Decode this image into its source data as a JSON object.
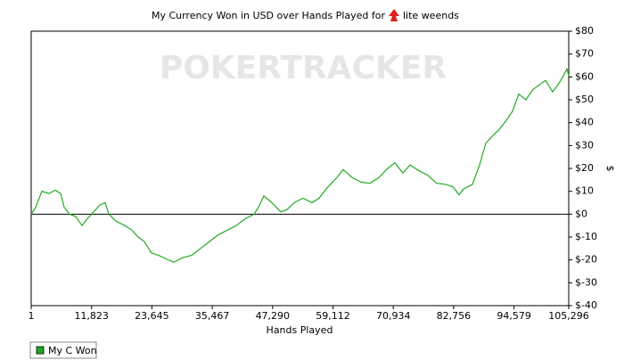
{
  "chart_data": {
    "type": "line",
    "title": "My Currency Won in USD over Hands Played for",
    "title_suffix": "lite weends",
    "watermark": "POKERTRACKER",
    "x_label": "Hands Played",
    "y_label": "$",
    "x": [
      1,
      874,
      2096,
      3493,
      4715,
      5763,
      6461,
      7509,
      8731,
      9953,
      11001,
      12223,
      13445,
      14493,
      15191,
      16588,
      18334,
      19731,
      20953,
      22175,
      23572,
      24969,
      26366,
      27937,
      29683,
      31429,
      33175,
      34921,
      36667,
      38413,
      40159,
      41905,
      43651,
      44524,
      45572,
      47143,
      48889,
      50111,
      51508,
      53254,
      55000,
      56397,
      58143,
      59889,
      61111,
      62857,
      64603,
      66349,
      68095,
      69841,
      71238,
      72809,
      74206,
      75952,
      77698,
      79444,
      81190,
      82587,
      83809,
      84682,
      86428,
      87825,
      89047,
      90269,
      91666,
      93063,
      94285,
      95507,
      96904,
      98301,
      99523,
      100745,
      102142,
      103190,
      104237,
      104936,
      105296
    ],
    "series": [
      {
        "name": "My C Won",
        "color": "#22aa22",
        "values": [
          0,
          3,
          10,
          9,
          10.5,
          9,
          3,
          0,
          -1,
          -5,
          -2,
          1,
          4,
          5,
          0,
          -3,
          -5,
          -7,
          -10,
          -12,
          -17,
          -18,
          -19.5,
          -21,
          -19,
          -18,
          -15,
          -12,
          -9,
          -7,
          -5,
          -2,
          0,
          3,
          8,
          5,
          1,
          2,
          5,
          7,
          5,
          7,
          12,
          16,
          19.5,
          16,
          14,
          13.5,
          16,
          20,
          22.5,
          18,
          21.5,
          19,
          17,
          13.5,
          13,
          12,
          8.5,
          11,
          13,
          21.5,
          31,
          34,
          37,
          41,
          45,
          52.5,
          50,
          54.5,
          56.5,
          58.5,
          53.5,
          56.5,
          60.5,
          63.5,
          60.5
        ]
      }
    ],
    "xlim": [
      1,
      105296
    ],
    "xticks": [
      1,
      {
        "value": 11823,
        "label": "11,823"
      },
      {
        "value": 23645,
        "label": "23,645"
      },
      {
        "value": 35467,
        "label": "35,467"
      },
      {
        "value": 47290,
        "label": "47,290"
      },
      {
        "value": 59112,
        "label": "59,112"
      },
      {
        "value": 70934,
        "label": "70,934"
      },
      {
        "value": 82756,
        "label": "82,756"
      },
      {
        "value": 94579,
        "label": "94,579"
      },
      {
        "value": 105296,
        "label": "105,296"
      }
    ],
    "ylim": [
      -40,
      80
    ],
    "yticks": [
      {
        "value": -40,
        "label": "$-40"
      },
      {
        "value": -30,
        "label": "$-30"
      },
      {
        "value": -20,
        "label": "$-20"
      },
      {
        "value": -10,
        "label": "$-10"
      },
      {
        "value": 0,
        "label": "$0"
      },
      {
        "value": 10,
        "label": "$10"
      },
      {
        "value": 20,
        "label": "$20"
      },
      {
        "value": 30,
        "label": "$30"
      },
      {
        "value": 40,
        "label": "$40"
      },
      {
        "value": 50,
        "label": "$50"
      },
      {
        "value": 60,
        "label": "$60"
      },
      {
        "value": 70,
        "label": "$70"
      },
      {
        "value": 80,
        "label": "$80"
      }
    ],
    "zero_line": true
  }
}
